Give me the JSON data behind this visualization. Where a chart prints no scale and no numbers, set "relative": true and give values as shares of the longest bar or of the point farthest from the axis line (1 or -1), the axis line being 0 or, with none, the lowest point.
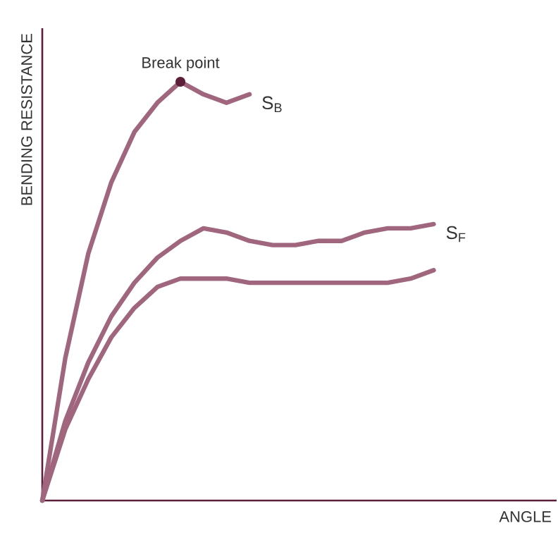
{
  "chart_data": {
    "type": "line",
    "xlabel": "ANGLE",
    "ylabel": "BENDING RESISTANCE",
    "relative": true,
    "tick_labels": false,
    "line_style": "solid",
    "categories": [
      null,
      null,
      null,
      null,
      null,
      null,
      null,
      null,
      null,
      null,
      null,
      null,
      null,
      null,
      null,
      null,
      null,
      null
    ],
    "annotations": [
      {
        "text": "Break point",
        "y": 1
      }
    ],
    "series": [
      {
        "name": "S$_{B}$",
        "color": "#a0667d",
        "values": [
          0,
          0.34,
          0.59,
          0.76,
          0.88,
          0.95,
          1,
          0.97,
          0.95,
          0.97,
          null,
          null,
          null,
          null,
          null,
          null,
          null,
          null
        ]
      },
      {
        "name": "S$_{F}$",
        "color": "#a0667d",
        "values": [
          0,
          0.19,
          0.33,
          0.44,
          0.52,
          0.58,
          0.62,
          0.65,
          0.64,
          0.62,
          0.61,
          0.61,
          0.62,
          0.62,
          0.64,
          0.65,
          0.65,
          0.66
        ]
      },
      {
        "color": "#a0667d",
        "values": [
          0,
          0.17,
          0.29,
          0.39,
          0.46,
          0.51,
          0.53,
          0.53,
          0.53,
          0.52,
          0.52,
          0.52,
          0.52,
          0.52,
          0.52,
          0.52,
          0.53,
          0.55
        ]
      }
    ]
  }
}
